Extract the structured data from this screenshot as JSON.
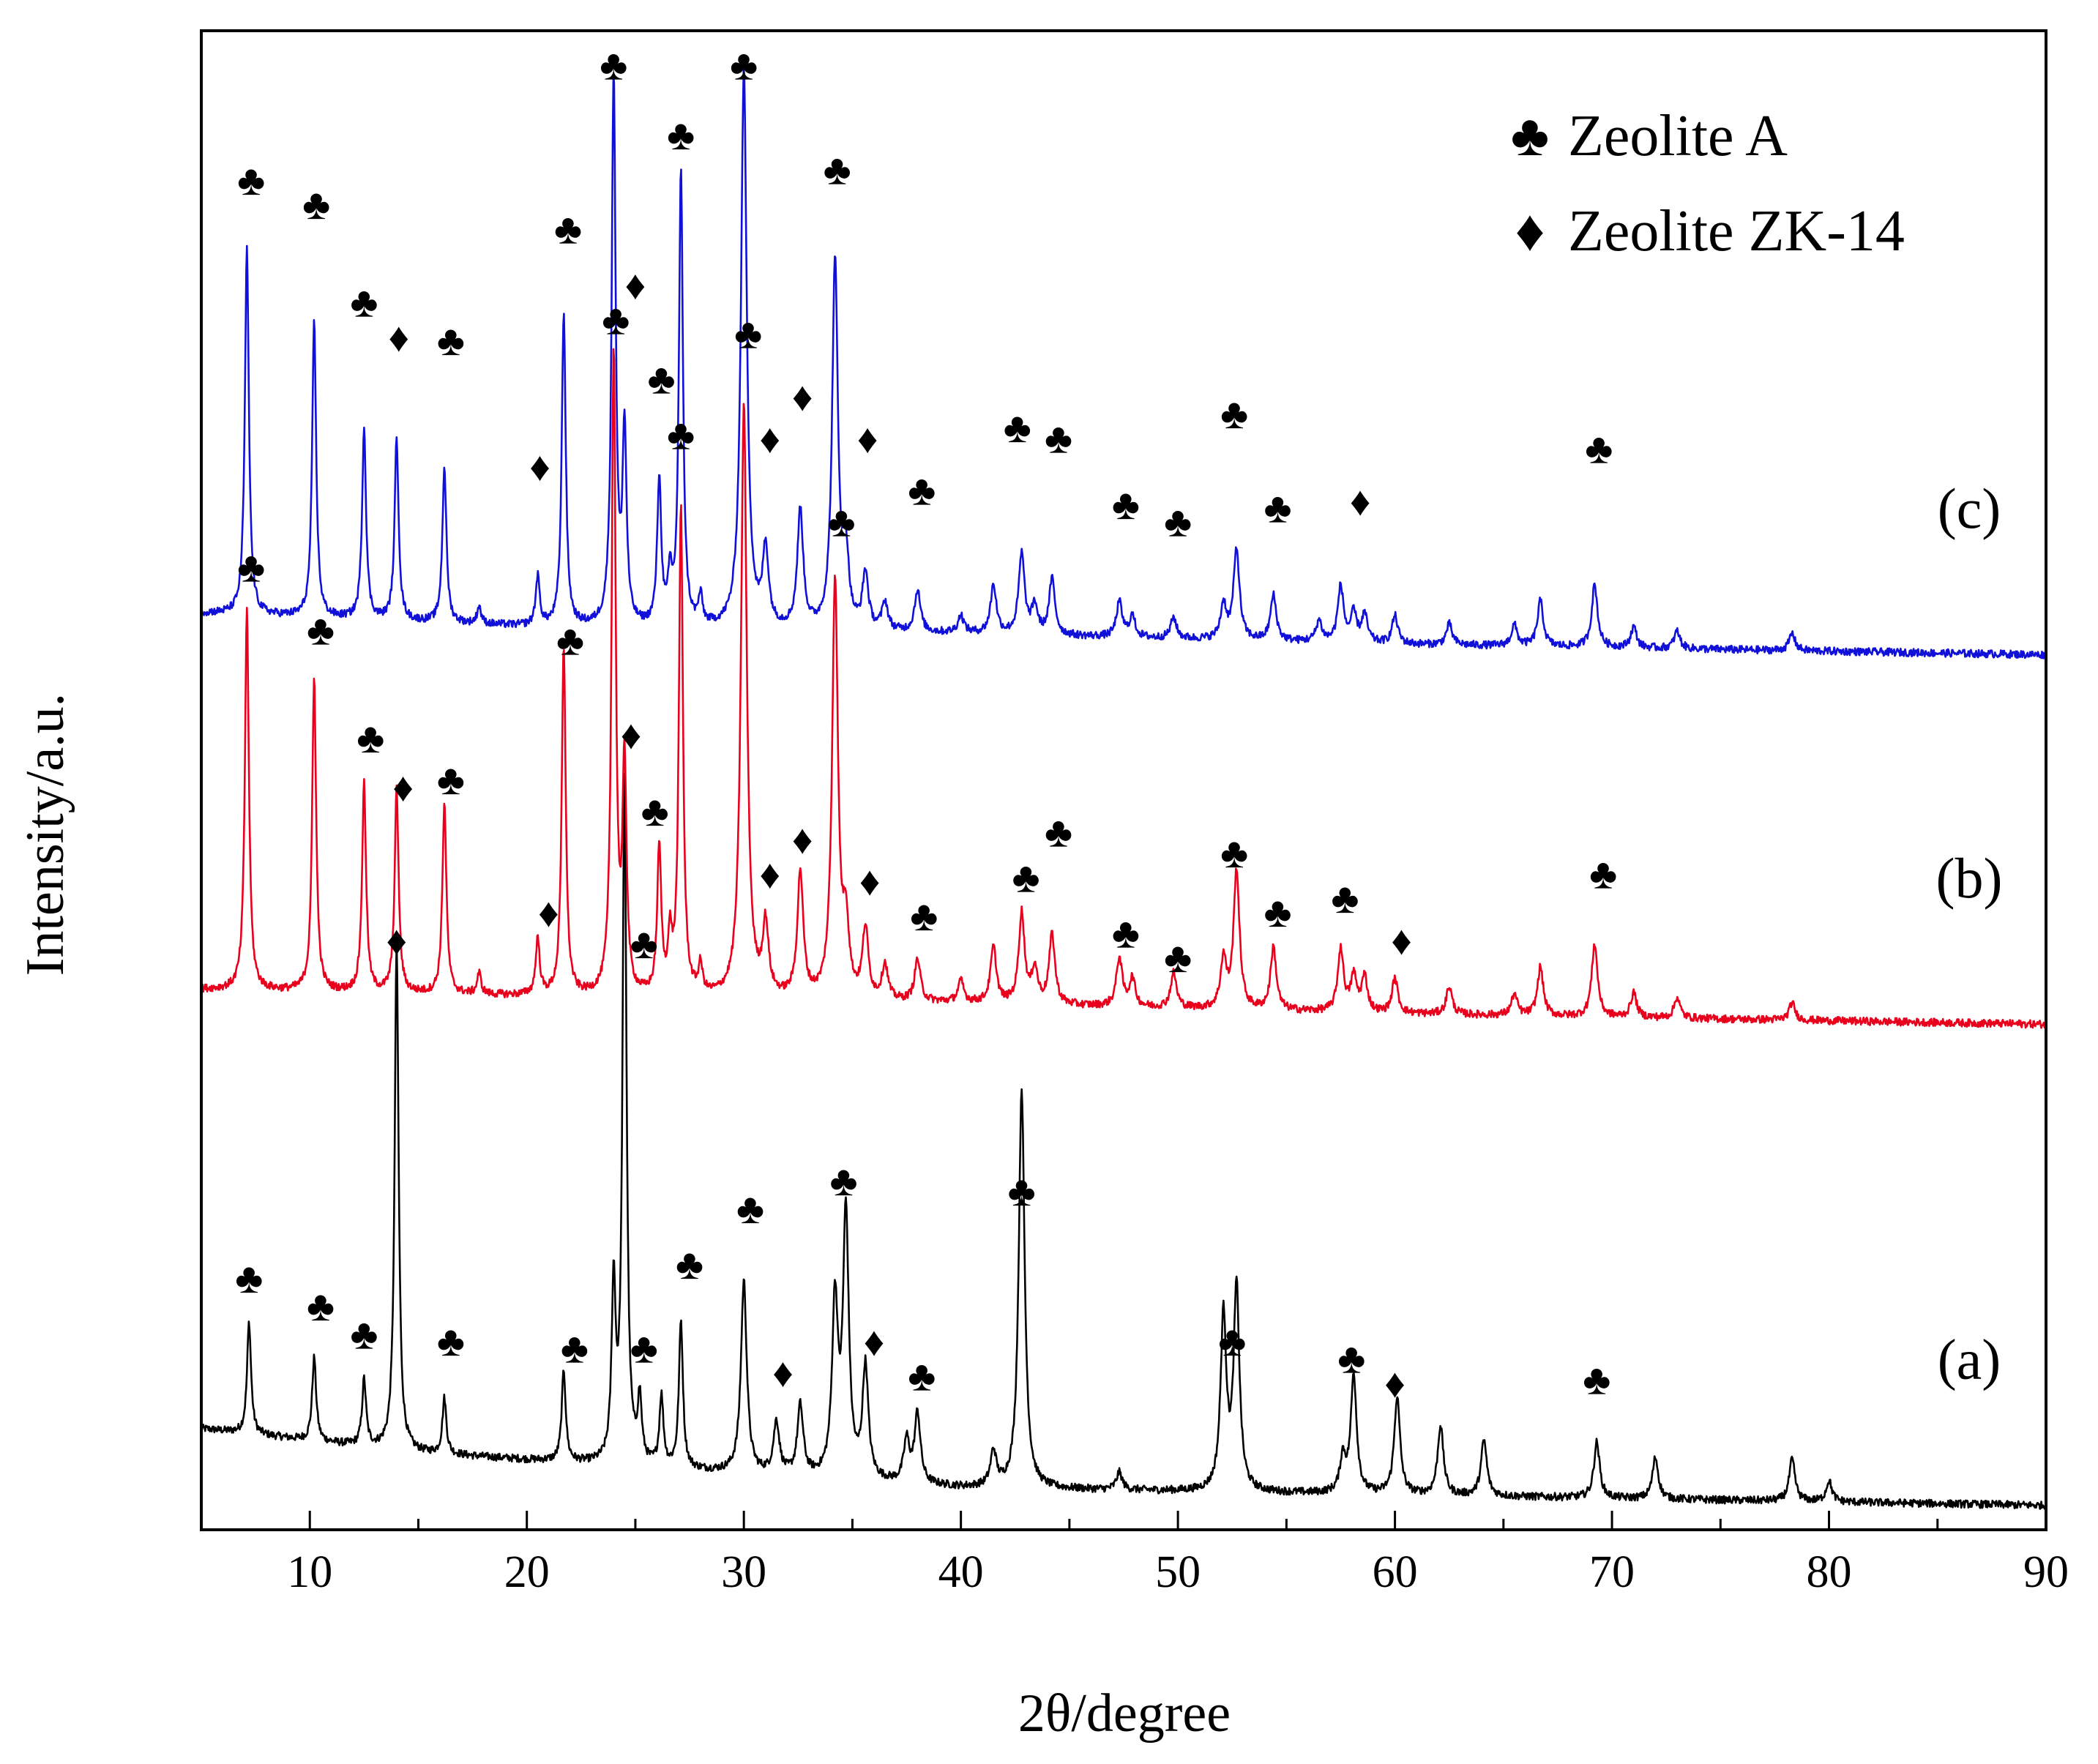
{
  "chart_data": {
    "type": "line",
    "title": "",
    "xlabel": "2θ/degree",
    "ylabel": "Intensity/a.u.",
    "xlim": [
      5,
      90
    ],
    "ylim": [
      0,
      43
    ],
    "xticks": [
      10,
      20,
      30,
      40,
      50,
      60,
      70,
      80,
      90
    ],
    "grid": false,
    "legend": {
      "position": "top-right",
      "entries": [
        {
          "symbol": "♣",
          "label": "Zeolite A"
        },
        {
          "symbol": "♦",
          "label": "Zeolite ZK-14"
        }
      ]
    },
    "series": [
      {
        "name": "(a)",
        "color": "#000000",
        "baseline": 0.6,
        "background": [
          [
            5,
            2.3
          ],
          [
            15,
            1.6
          ],
          [
            20,
            1.4
          ],
          [
            30,
            1.0
          ],
          [
            40,
            0.6
          ],
          [
            60,
            0.4
          ],
          [
            90,
            0.1
          ]
        ],
        "peaks": [
          [
            7.2,
            3.2
          ],
          [
            10.2,
            2.4
          ],
          [
            12.5,
            1.9
          ],
          [
            14.0,
            14.5
          ],
          [
            16.2,
            1.6
          ],
          [
            21.7,
            2.6
          ],
          [
            24.0,
            5.0
          ],
          [
            24.5,
            19.5
          ],
          [
            25.2,
            1.8
          ],
          [
            26.2,
            2.0
          ],
          [
            27.1,
            4.2
          ],
          [
            30.0,
            5.5
          ],
          [
            31.5,
            1.5
          ],
          [
            32.6,
            2.0
          ],
          [
            34.2,
            5.0
          ],
          [
            34.7,
            7.5
          ],
          [
            35.6,
            3.2
          ],
          [
            37.5,
            1.2
          ],
          [
            38.0,
            2.0
          ],
          [
            41.5,
            1.0
          ],
          [
            42.8,
            11.5
          ],
          [
            47.3,
            0.5
          ],
          [
            52.1,
            5.0
          ],
          [
            52.7,
            5.8
          ],
          [
            57.6,
            1.0
          ],
          [
            58.1,
            3.4
          ],
          [
            60.1,
            2.8
          ],
          [
            62.1,
            2.0
          ],
          [
            64.1,
            1.6
          ],
          [
            69.3,
            1.6
          ],
          [
            72.0,
            1.2
          ],
          [
            78.3,
            1.2
          ],
          [
            80.0,
            0.6
          ]
        ],
        "annotations": [
          {
            "x": 7.2,
            "y": 6.8,
            "marker": "♣"
          },
          {
            "x": 10.5,
            "y": 6.0,
            "marker": "♣"
          },
          {
            "x": 12.5,
            "y": 5.2,
            "marker": "♣"
          },
          {
            "x": 14.0,
            "y": 16.5,
            "marker": "♦"
          },
          {
            "x": 16.5,
            "y": 5.0,
            "marker": "♣"
          },
          {
            "x": 22.2,
            "y": 4.8,
            "marker": "♣"
          },
          {
            "x": 25.4,
            "y": 16.4,
            "marker": "♣"
          },
          {
            "x": 25.4,
            "y": 4.8,
            "marker": "♣"
          },
          {
            "x": 27.5,
            "y": 7.2,
            "marker": "♣"
          },
          {
            "x": 30.3,
            "y": 8.8,
            "marker": "♣"
          },
          {
            "x": 31.8,
            "y": 4.1,
            "marker": "♦"
          },
          {
            "x": 34.6,
            "y": 9.6,
            "marker": "♣"
          },
          {
            "x": 36.0,
            "y": 5.0,
            "marker": "♦"
          },
          {
            "x": 38.2,
            "y": 4.0,
            "marker": "♣"
          },
          {
            "x": 42.8,
            "y": 9.3,
            "marker": "♣"
          },
          {
            "x": 52.5,
            "y": 5.0,
            "marker": "♣"
          },
          {
            "x": 58.0,
            "y": 4.5,
            "marker": "♣"
          },
          {
            "x": 60.0,
            "y": 3.8,
            "marker": "♦"
          },
          {
            "x": 69.3,
            "y": 3.9,
            "marker": "♣"
          }
        ]
      },
      {
        "name": "(b)",
        "color": "#e8001c",
        "baseline": 14.5,
        "background": [
          [
            5,
            1.0
          ],
          [
            20,
            0.8
          ],
          [
            40,
            0.6
          ],
          [
            60,
            0.3
          ],
          [
            90,
            0.0
          ]
        ],
        "peaks": [
          [
            7.1,
            11.0
          ],
          [
            10.2,
            9.0
          ],
          [
            12.5,
            6.0
          ],
          [
            14.0,
            5.8
          ],
          [
            16.2,
            5.5
          ],
          [
            17.8,
            0.6
          ],
          [
            20.5,
            1.6
          ],
          [
            21.7,
            10.0
          ],
          [
            24.0,
            18.5
          ],
          [
            24.5,
            6.5
          ],
          [
            26.1,
            4.2
          ],
          [
            26.6,
            1.5
          ],
          [
            27.1,
            14.0
          ],
          [
            28.0,
            0.8
          ],
          [
            30.0,
            17.0
          ],
          [
            31.0,
            2.0
          ],
          [
            32.6,
            3.6
          ],
          [
            34.2,
            12.0
          ],
          [
            34.7,
            2.0
          ],
          [
            35.6,
            2.0
          ],
          [
            36.5,
            1.0
          ],
          [
            38.0,
            1.2
          ],
          [
            40.0,
            0.6
          ],
          [
            41.5,
            1.6
          ],
          [
            42.8,
            2.6
          ],
          [
            43.4,
            1.0
          ],
          [
            44.2,
            2.0
          ],
          [
            47.3,
            1.4
          ],
          [
            47.9,
            0.8
          ],
          [
            49.8,
            1.0
          ],
          [
            52.1,
            1.4
          ],
          [
            52.7,
            4.0
          ],
          [
            54.4,
            1.8
          ],
          [
            57.5,
            1.8
          ],
          [
            58.1,
            1.0
          ],
          [
            58.6,
            1.0
          ],
          [
            60.0,
            1.0
          ],
          [
            62.5,
            0.8
          ],
          [
            65.5,
            0.6
          ],
          [
            66.7,
            1.4
          ],
          [
            69.2,
            2.1
          ],
          [
            71.0,
            0.7
          ],
          [
            73.0,
            0.6
          ],
          [
            78.3,
            0.5
          ]
        ],
        "annotations": [
          {
            "x": 7.3,
            "y": 27.2,
            "marker": "♣"
          },
          {
            "x": 10.5,
            "y": 25.4,
            "marker": "♣"
          },
          {
            "x": 12.8,
            "y": 22.3,
            "marker": "♣"
          },
          {
            "x": 14.3,
            "y": 20.9,
            "marker": "♦"
          },
          {
            "x": 16.5,
            "y": 21.1,
            "marker": "♣"
          },
          {
            "x": 21.0,
            "y": 17.3,
            "marker": "♦"
          },
          {
            "x": 22.0,
            "y": 25.1,
            "marker": "♣"
          },
          {
            "x": 24.1,
            "y": 34.3,
            "marker": "♣"
          },
          {
            "x": 24.8,
            "y": 22.4,
            "marker": "♦"
          },
          {
            "x": 25.9,
            "y": 20.2,
            "marker": "♣"
          },
          {
            "x": 27.1,
            "y": 31.0,
            "marker": "♣"
          },
          {
            "x": 30.2,
            "y": 33.9,
            "marker": "♣"
          },
          {
            "x": 31.2,
            "y": 18.4,
            "marker": "♦"
          },
          {
            "x": 32.7,
            "y": 19.4,
            "marker": "♦"
          },
          {
            "x": 34.5,
            "y": 28.5,
            "marker": "♣"
          },
          {
            "x": 35.8,
            "y": 18.2,
            "marker": "♦"
          },
          {
            "x": 38.3,
            "y": 17.2,
            "marker": "♣"
          },
          {
            "x": 43.0,
            "y": 18.3,
            "marker": "♣"
          },
          {
            "x": 44.5,
            "y": 19.6,
            "marker": "♣"
          },
          {
            "x": 47.6,
            "y": 16.7,
            "marker": "♣"
          },
          {
            "x": 50.0,
            "y": 16.0,
            "marker": "♣"
          },
          {
            "x": 52.6,
            "y": 19.0,
            "marker": "♣"
          },
          {
            "x": 54.6,
            "y": 17.3,
            "marker": "♣"
          },
          {
            "x": 57.7,
            "y": 17.7,
            "marker": "♣"
          },
          {
            "x": 60.3,
            "y": 16.5,
            "marker": "♦"
          },
          {
            "x": 69.6,
            "y": 18.4,
            "marker": "♣"
          }
        ]
      },
      {
        "name": "(c)",
        "color": "#1010d8",
        "baseline": 25.1,
        "background": [
          [
            5,
            1.2
          ],
          [
            20,
            0.8
          ],
          [
            40,
            0.6
          ],
          [
            60,
            0.3
          ],
          [
            90,
            0.0
          ]
        ],
        "peaks": [
          [
            7.1,
            10.5
          ],
          [
            10.2,
            8.5
          ],
          [
            12.5,
            5.5
          ],
          [
            14.0,
            5.2
          ],
          [
            16.2,
            4.5
          ],
          [
            17.8,
            0.5
          ],
          [
            20.5,
            1.4
          ],
          [
            21.7,
            9.0
          ],
          [
            24.0,
            15.8
          ],
          [
            24.5,
            5.5
          ],
          [
            26.1,
            4.2
          ],
          [
            26.6,
            1.3
          ],
          [
            27.1,
            13.0
          ],
          [
            28.0,
            0.8
          ],
          [
            30.0,
            16.0
          ],
          [
            31.0,
            2.2
          ],
          [
            32.6,
            3.4
          ],
          [
            34.2,
            10.5
          ],
          [
            34.7,
            2.0
          ],
          [
            35.6,
            1.6
          ],
          [
            36.5,
            0.8
          ],
          [
            38.0,
            1.2
          ],
          [
            40.0,
            0.5
          ],
          [
            41.5,
            1.4
          ],
          [
            42.8,
            2.3
          ],
          [
            43.4,
            0.8
          ],
          [
            44.2,
            1.6
          ],
          [
            47.3,
            1.0
          ],
          [
            47.9,
            0.6
          ],
          [
            49.8,
            0.6
          ],
          [
            52.1,
            1.0
          ],
          [
            52.7,
            2.6
          ],
          [
            54.4,
            1.3
          ],
          [
            56.5,
            0.6
          ],
          [
            57.5,
            1.6
          ],
          [
            58.1,
            0.8
          ],
          [
            58.6,
            0.8
          ],
          [
            60.0,
            0.8
          ],
          [
            62.5,
            0.6
          ],
          [
            65.5,
            0.6
          ],
          [
            66.7,
            1.3
          ],
          [
            69.2,
            1.8
          ],
          [
            71.0,
            0.6
          ],
          [
            73.0,
            0.5
          ],
          [
            78.3,
            0.5
          ]
        ],
        "annotations": [
          {
            "x": 7.3,
            "y": 38.3,
            "marker": "♣"
          },
          {
            "x": 10.3,
            "y": 37.6,
            "marker": "♣"
          },
          {
            "x": 12.5,
            "y": 34.8,
            "marker": "♣"
          },
          {
            "x": 14.1,
            "y": 33.8,
            "marker": "♦"
          },
          {
            "x": 16.5,
            "y": 33.7,
            "marker": "♣"
          },
          {
            "x": 20.6,
            "y": 30.1,
            "marker": "♦"
          },
          {
            "x": 21.9,
            "y": 36.9,
            "marker": "♣"
          },
          {
            "x": 24.0,
            "y": 41.6,
            "marker": "♣"
          },
          {
            "x": 25.0,
            "y": 35.3,
            "marker": "♦"
          },
          {
            "x": 26.2,
            "y": 32.6,
            "marker": "♣"
          },
          {
            "x": 27.1,
            "y": 39.6,
            "marker": "♣"
          },
          {
            "x": 30.0,
            "y": 41.6,
            "marker": "♣"
          },
          {
            "x": 31.2,
            "y": 30.9,
            "marker": "♦"
          },
          {
            "x": 32.7,
            "y": 32.1,
            "marker": "♦"
          },
          {
            "x": 34.3,
            "y": 38.6,
            "marker": "♣"
          },
          {
            "x": 35.7,
            "y": 30.9,
            "marker": "♦"
          },
          {
            "x": 38.2,
            "y": 29.4,
            "marker": "♣"
          },
          {
            "x": 42.6,
            "y": 31.2,
            "marker": "♣"
          },
          {
            "x": 44.5,
            "y": 30.9,
            "marker": "♣"
          },
          {
            "x": 47.6,
            "y": 29.0,
            "marker": "♣"
          },
          {
            "x": 50.0,
            "y": 28.5,
            "marker": "♣"
          },
          {
            "x": 52.6,
            "y": 31.6,
            "marker": "♣"
          },
          {
            "x": 54.6,
            "y": 28.9,
            "marker": "♣"
          },
          {
            "x": 58.4,
            "y": 29.1,
            "marker": "♦"
          },
          {
            "x": 69.4,
            "y": 30.6,
            "marker": "♣"
          }
        ]
      }
    ]
  }
}
